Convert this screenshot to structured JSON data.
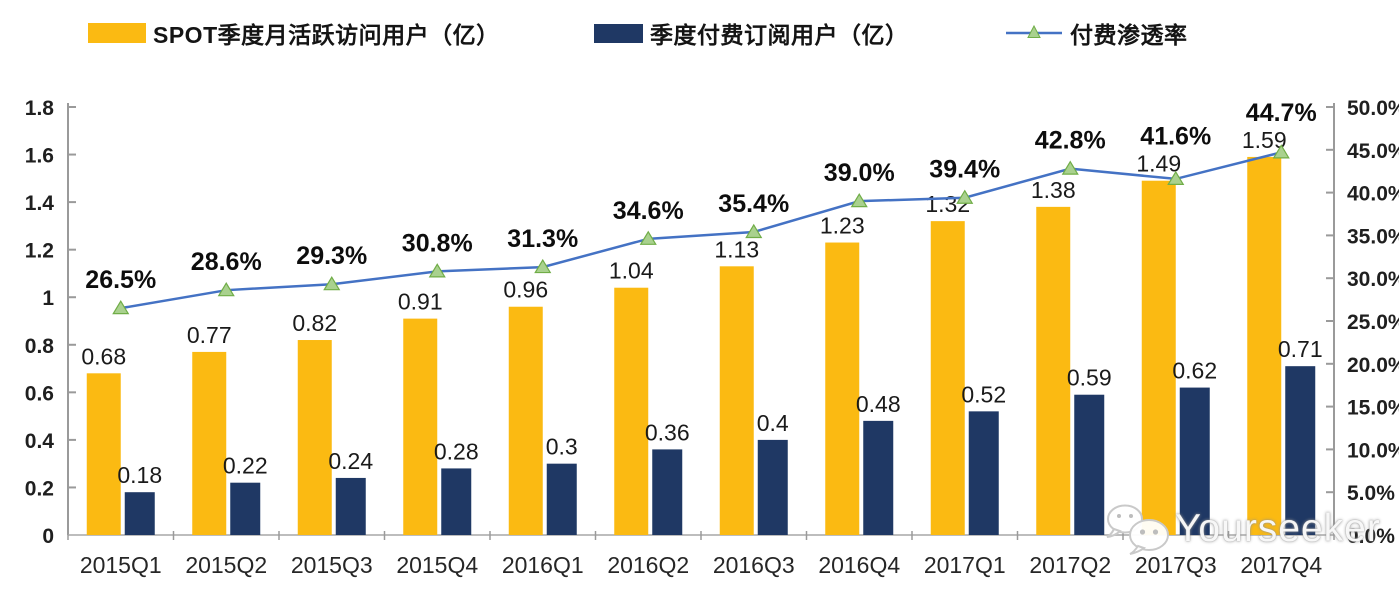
{
  "watermark": {
    "text": "Yourseeker",
    "icon": "wechat-icon"
  },
  "legend": {
    "items": [
      {
        "label": "SPOT季度月活跃访问用户（亿）",
        "color": "#FBBA12",
        "type": "bar"
      },
      {
        "label": "季度付费订阅用户（亿）",
        "color": "#1F3864",
        "type": "bar"
      },
      {
        "label": "付费渗透率",
        "color": "#4472C4",
        "type": "line"
      }
    ]
  },
  "chart_data": {
    "type": "combo-bar-line",
    "title": "",
    "legend_position": "top",
    "grid": false,
    "categories": [
      "2015Q1",
      "2015Q2",
      "2015Q3",
      "2015Q4",
      "2016Q1",
      "2016Q2",
      "2016Q3",
      "2016Q4",
      "2017Q1",
      "2017Q2",
      "2017Q3",
      "2017Q4"
    ],
    "series": [
      {
        "name": "SPOT季度月活跃访问用户（亿）",
        "type": "bar",
        "axis": "left",
        "color": "#FBBA12",
        "values": [
          0.68,
          0.77,
          0.82,
          0.91,
          0.96,
          1.04,
          1.13,
          1.23,
          1.32,
          1.38,
          1.49,
          1.59
        ],
        "labels": [
          "0.68",
          "0.77",
          "0.82",
          "0.91",
          "0.96",
          "1.04",
          "1.13",
          "1.23",
          "1.32",
          "1.38",
          "1.49",
          "1.59"
        ]
      },
      {
        "name": "季度付费订阅用户（亿）",
        "type": "bar",
        "axis": "left",
        "color": "#1F3864",
        "values": [
          0.18,
          0.22,
          0.24,
          0.28,
          0.3,
          0.36,
          0.4,
          0.48,
          0.52,
          0.59,
          0.62,
          0.71
        ],
        "labels": [
          "0.18",
          "0.22",
          "0.24",
          "0.28",
          "0.3",
          "0.36",
          "0.4",
          "0.48",
          "0.52",
          "0.59",
          "0.62",
          "0.71"
        ]
      },
      {
        "name": "付费渗透率",
        "type": "line",
        "axis": "right",
        "color": "#4472C4",
        "marker": {
          "shape": "triangle",
          "fill": "#A9D18E",
          "stroke": "#70AD47"
        },
        "values": [
          26.5,
          28.6,
          29.3,
          30.8,
          31.3,
          34.6,
          35.4,
          39.0,
          39.4,
          42.8,
          41.6,
          44.7
        ],
        "labels": [
          "26.5%",
          "28.6%",
          "29.3%",
          "30.8%",
          "31.3%",
          "34.6%",
          "35.4%",
          "39.0%",
          "39.4%",
          "42.8%",
          "41.6%",
          "44.7%"
        ]
      }
    ],
    "left_axis": {
      "min": 0,
      "max": 1.8,
      "step": 0.2,
      "ticks": [
        "1.8",
        "1.6",
        "1.4",
        "1.2",
        "1",
        "0.8",
        "0.6",
        "0.4",
        "0.2",
        "0"
      ]
    },
    "right_axis": {
      "min": 0,
      "max": 50,
      "step": 5,
      "ticks": [
        "50.0%",
        "45.0%",
        "40.0%",
        "35.0%",
        "30.0%",
        "25.0%",
        "20.0%",
        "15.0%",
        "10.0%",
        "5.0%",
        "0.0%"
      ]
    },
    "axis_color": "#9a9a9a",
    "text_color": "#1f1f1f"
  }
}
